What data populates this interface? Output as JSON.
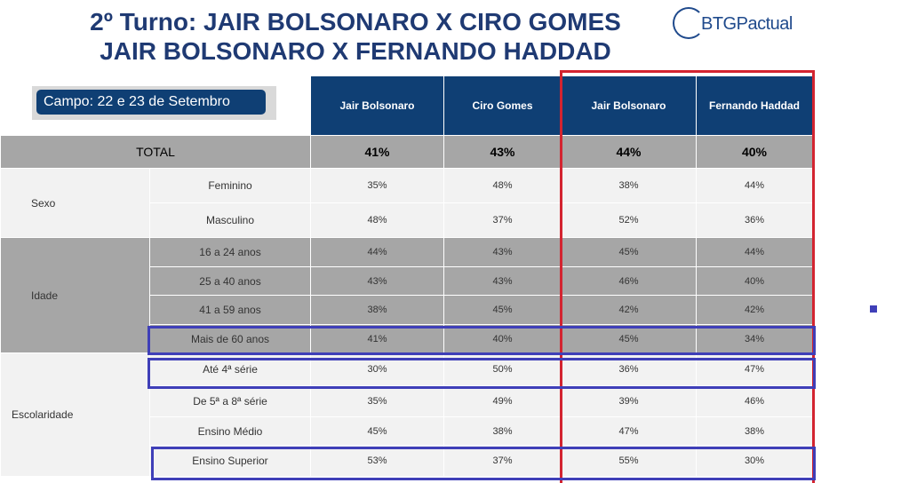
{
  "title": {
    "line1": "2º Turno: JAIR BOLSONARO X CIRO GOMES",
    "line2": "JAIR BOLSONARO X FERNANDO HADDAD"
  },
  "logo": {
    "text": "BTGPactual"
  },
  "campo": "Campo: 22 e 23 de Setembro",
  "headers": [
    "Jair Bolsonaro",
    "Ciro Gomes",
    "Jair Bolsonaro",
    "Fernando Haddad"
  ],
  "total": {
    "label": "TOTAL",
    "values": [
      "41%",
      "43%",
      "44%",
      "40%"
    ]
  },
  "groups": {
    "sexo": "Sexo",
    "idade": "Idade",
    "escolaridade": "Escolaridade"
  },
  "rows": [
    {
      "label": "Feminino",
      "values": [
        "35%",
        "48%",
        "38%",
        "44%"
      ]
    },
    {
      "label": "Masculino",
      "values": [
        "48%",
        "37%",
        "52%",
        "36%"
      ]
    },
    {
      "label": "16 a 24 anos",
      "values": [
        "44%",
        "43%",
        "45%",
        "44%"
      ]
    },
    {
      "label": "25 a 40 anos",
      "values": [
        "43%",
        "43%",
        "46%",
        "40%"
      ]
    },
    {
      "label": "41 a 59 anos",
      "values": [
        "38%",
        "45%",
        "42%",
        "42%"
      ]
    },
    {
      "label": "Mais de 60 anos",
      "values": [
        "41%",
        "40%",
        "45%",
        "34%"
      ]
    },
    {
      "label": "Até 4ª série",
      "values": [
        "30%",
        "50%",
        "36%",
        "47%"
      ]
    },
    {
      "label": "De 5ª a 8ª série",
      "values": [
        "35%",
        "49%",
        "39%",
        "46%"
      ]
    },
    {
      "label": "Ensino Médio",
      "values": [
        "45%",
        "38%",
        "47%",
        "38%"
      ]
    },
    {
      "label": "Ensino Superior",
      "values": [
        "53%",
        "37%",
        "55%",
        "30%"
      ]
    }
  ]
}
